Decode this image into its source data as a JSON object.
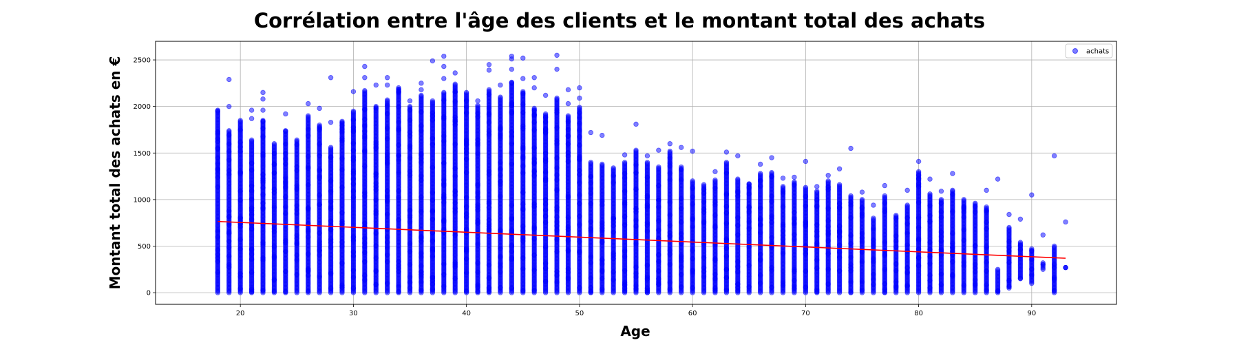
{
  "chart_data": {
    "type": "scatter",
    "title": "Corrélation entre l'âge des clients et le montant total des achats",
    "xlabel": "Age",
    "ylabel": "Montant total des achats en €",
    "xlim": [
      12.5,
      97.5
    ],
    "ylim": [
      -125,
      2700
    ],
    "xticks": [
      20,
      30,
      40,
      50,
      60,
      70,
      80,
      90
    ],
    "yticks": [
      0,
      500,
      1000,
      1500,
      2000,
      2500
    ],
    "grid": true,
    "legend_position": "top-right",
    "series": [
      {
        "name": "achats",
        "type": "scatter",
        "color": "#0000ff",
        "opacity": 0.5,
        "columns": [
          {
            "x": 18,
            "ymin": 0,
            "ymax": 1960,
            "outliers": []
          },
          {
            "x": 19,
            "ymin": 0,
            "ymax": 1740,
            "outliers": [
              2290,
              2000
            ]
          },
          {
            "x": 20,
            "ymin": 0,
            "ymax": 1850,
            "outliers": []
          },
          {
            "x": 21,
            "ymin": 0,
            "ymax": 1640,
            "outliers": [
              1960,
              1870
            ]
          },
          {
            "x": 22,
            "ymin": 0,
            "ymax": 1850,
            "outliers": [
              2150,
              2080,
              1960
            ]
          },
          {
            "x": 23,
            "ymin": 0,
            "ymax": 1600,
            "outliers": []
          },
          {
            "x": 24,
            "ymin": 0,
            "ymax": 1740,
            "outliers": [
              1920
            ]
          },
          {
            "x": 25,
            "ymin": 0,
            "ymax": 1640,
            "outliers": []
          },
          {
            "x": 26,
            "ymin": 0,
            "ymax": 1900,
            "outliers": [
              2030
            ]
          },
          {
            "x": 27,
            "ymin": 0,
            "ymax": 1800,
            "outliers": [
              1980
            ]
          },
          {
            "x": 28,
            "ymin": 0,
            "ymax": 1560,
            "outliers": [
              2310,
              1830
            ]
          },
          {
            "x": 29,
            "ymin": 0,
            "ymax": 1840,
            "outliers": []
          },
          {
            "x": 30,
            "ymin": 0,
            "ymax": 1950,
            "outliers": [
              2160
            ]
          },
          {
            "x": 31,
            "ymin": 0,
            "ymax": 2170,
            "outliers": [
              2430,
              2310
            ]
          },
          {
            "x": 32,
            "ymin": 0,
            "ymax": 2000,
            "outliers": [
              2230
            ]
          },
          {
            "x": 33,
            "ymin": 0,
            "ymax": 2070,
            "outliers": [
              2310,
              2230
            ]
          },
          {
            "x": 34,
            "ymin": 0,
            "ymax": 2200,
            "outliers": []
          },
          {
            "x": 35,
            "ymin": 0,
            "ymax": 2000,
            "outliers": [
              2060
            ]
          },
          {
            "x": 36,
            "ymin": 0,
            "ymax": 2120,
            "outliers": [
              2250,
              2180
            ]
          },
          {
            "x": 37,
            "ymin": 0,
            "ymax": 2060,
            "outliers": [
              2490
            ]
          },
          {
            "x": 38,
            "ymin": 0,
            "ymax": 2150,
            "outliers": [
              2540,
              2430,
              2300
            ]
          },
          {
            "x": 39,
            "ymin": 0,
            "ymax": 2240,
            "outliers": [
              2360
            ]
          },
          {
            "x": 40,
            "ymin": 0,
            "ymax": 2150,
            "outliers": []
          },
          {
            "x": 41,
            "ymin": 0,
            "ymax": 2010,
            "outliers": [
              2060
            ]
          },
          {
            "x": 42,
            "ymin": 0,
            "ymax": 2180,
            "outliers": [
              2450,
              2390
            ]
          },
          {
            "x": 43,
            "ymin": 0,
            "ymax": 2100,
            "outliers": [
              2230
            ]
          },
          {
            "x": 44,
            "ymin": 0,
            "ymax": 2260,
            "outliers": [
              2540,
              2510,
              2400
            ]
          },
          {
            "x": 45,
            "ymin": 0,
            "ymax": 2160,
            "outliers": [
              2520,
              2300
            ]
          },
          {
            "x": 46,
            "ymin": 0,
            "ymax": 1980,
            "outliers": [
              2310,
              2200
            ]
          },
          {
            "x": 47,
            "ymin": 0,
            "ymax": 1920,
            "outliers": [
              2120
            ]
          },
          {
            "x": 48,
            "ymin": 0,
            "ymax": 2090,
            "outliers": [
              2550,
              2400
            ]
          },
          {
            "x": 49,
            "ymin": 0,
            "ymax": 1900,
            "outliers": [
              2180,
              2030
            ]
          },
          {
            "x": 50,
            "ymin": 0,
            "ymax": 1990,
            "outliers": [
              2200,
              2090
            ]
          },
          {
            "x": 51,
            "ymin": 0,
            "ymax": 1400,
            "outliers": [
              1720
            ]
          },
          {
            "x": 52,
            "ymin": 0,
            "ymax": 1380,
            "outliers": [
              1690
            ]
          },
          {
            "x": 53,
            "ymin": 0,
            "ymax": 1340,
            "outliers": []
          },
          {
            "x": 54,
            "ymin": 0,
            "ymax": 1400,
            "outliers": [
              1480
            ]
          },
          {
            "x": 55,
            "ymin": 0,
            "ymax": 1530,
            "outliers": [
              1810
            ]
          },
          {
            "x": 56,
            "ymin": 0,
            "ymax": 1400,
            "outliers": [
              1470
            ]
          },
          {
            "x": 57,
            "ymin": 0,
            "ymax": 1350,
            "outliers": [
              1530
            ]
          },
          {
            "x": 58,
            "ymin": 0,
            "ymax": 1520,
            "outliers": [
              1600
            ]
          },
          {
            "x": 59,
            "ymin": 0,
            "ymax": 1350,
            "outliers": [
              1560
            ]
          },
          {
            "x": 60,
            "ymin": 0,
            "ymax": 1200,
            "outliers": [
              1520
            ]
          },
          {
            "x": 61,
            "ymin": 0,
            "ymax": 1160,
            "outliers": []
          },
          {
            "x": 62,
            "ymin": 0,
            "ymax": 1210,
            "outliers": [
              1300
            ]
          },
          {
            "x": 63,
            "ymin": 0,
            "ymax": 1400,
            "outliers": [
              1510
            ]
          },
          {
            "x": 64,
            "ymin": 0,
            "ymax": 1220,
            "outliers": [
              1470
            ]
          },
          {
            "x": 65,
            "ymin": 0,
            "ymax": 1170,
            "outliers": []
          },
          {
            "x": 66,
            "ymin": 0,
            "ymax": 1280,
            "outliers": [
              1380
            ]
          },
          {
            "x": 67,
            "ymin": 0,
            "ymax": 1290,
            "outliers": [
              1450
            ]
          },
          {
            "x": 68,
            "ymin": 0,
            "ymax": 1140,
            "outliers": [
              1230
            ]
          },
          {
            "x": 69,
            "ymin": 0,
            "ymax": 1190,
            "outliers": [
              1240
            ]
          },
          {
            "x": 70,
            "ymin": 0,
            "ymax": 1130,
            "outliers": [
              1410
            ]
          },
          {
            "x": 71,
            "ymin": 0,
            "ymax": 1090,
            "outliers": [
              1140
            ]
          },
          {
            "x": 72,
            "ymin": 0,
            "ymax": 1200,
            "outliers": [
              1260
            ]
          },
          {
            "x": 73,
            "ymin": 0,
            "ymax": 1160,
            "outliers": [
              1330
            ]
          },
          {
            "x": 74,
            "ymin": 0,
            "ymax": 1040,
            "outliers": [
              1550
            ]
          },
          {
            "x": 75,
            "ymin": 0,
            "ymax": 1000,
            "outliers": [
              1080
            ]
          },
          {
            "x": 76,
            "ymin": 0,
            "ymax": 800,
            "outliers": [
              940
            ]
          },
          {
            "x": 77,
            "ymin": 0,
            "ymax": 1040,
            "outliers": [
              1150
            ]
          },
          {
            "x": 78,
            "ymin": 0,
            "ymax": 830,
            "outliers": []
          },
          {
            "x": 79,
            "ymin": 0,
            "ymax": 940,
            "outliers": [
              1100
            ]
          },
          {
            "x": 80,
            "ymin": 0,
            "ymax": 1300,
            "outliers": [
              1410
            ]
          },
          {
            "x": 81,
            "ymin": 0,
            "ymax": 1060,
            "outliers": [
              1220
            ]
          },
          {
            "x": 82,
            "ymin": 0,
            "ymax": 1000,
            "outliers": [
              1090
            ]
          },
          {
            "x": 83,
            "ymin": 0,
            "ymax": 1100,
            "outliers": [
              1280
            ]
          },
          {
            "x": 84,
            "ymin": 0,
            "ymax": 1000,
            "outliers": []
          },
          {
            "x": 85,
            "ymin": 0,
            "ymax": 960,
            "outliers": []
          },
          {
            "x": 86,
            "ymin": 0,
            "ymax": 920,
            "outliers": [
              1100
            ]
          },
          {
            "x": 87,
            "ymin": 0,
            "ymax": 250,
            "outliers": [
              1220
            ]
          },
          {
            "x": 88,
            "ymin": 50,
            "ymax": 700,
            "outliers": [
              840
            ]
          },
          {
            "x": 89,
            "ymin": 150,
            "ymax": 540,
            "outliers": [
              790
            ]
          },
          {
            "x": 90,
            "ymin": 100,
            "ymax": 470,
            "outliers": [
              1050
            ]
          },
          {
            "x": 91,
            "ymin": 250,
            "ymax": 320,
            "outliers": [
              620
            ]
          },
          {
            "x": 92,
            "ymin": 0,
            "ymax": 500,
            "outliers": [
              1470
            ]
          },
          {
            "x": 93,
            "ymin": 270,
            "ymax": 270,
            "outliers": [
              760
            ]
          }
        ]
      },
      {
        "type": "line",
        "color": "#ff0000",
        "x": [
          18,
          93
        ],
        "y": [
          765,
          370
        ]
      }
    ]
  }
}
